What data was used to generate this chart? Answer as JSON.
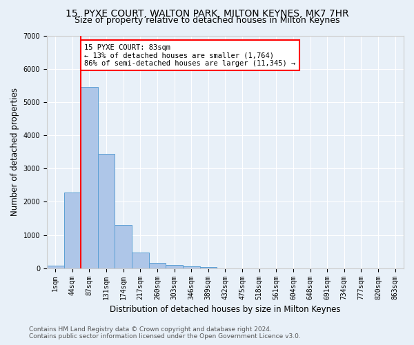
{
  "title1": "15, PYXE COURT, WALTON PARK, MILTON KEYNES, MK7 7HR",
  "title2": "Size of property relative to detached houses in Milton Keynes",
  "xlabel": "Distribution of detached houses by size in Milton Keynes",
  "ylabel": "Number of detached properties",
  "footer1": "Contains HM Land Registry data © Crown copyright and database right 2024.",
  "footer2": "Contains public sector information licensed under the Open Government Licence v3.0.",
  "bar_labels": [
    "1sqm",
    "44sqm",
    "87sqm",
    "131sqm",
    "174sqm",
    "217sqm",
    "260sqm",
    "303sqm",
    "346sqm",
    "389sqm",
    "432sqm",
    "475sqm",
    "518sqm",
    "561sqm",
    "604sqm",
    "648sqm",
    "691sqm",
    "734sqm",
    "777sqm",
    "820sqm",
    "863sqm"
  ],
  "bar_values": [
    80,
    2270,
    5460,
    3440,
    1310,
    470,
    160,
    100,
    65,
    30,
    0,
    0,
    0,
    0,
    0,
    0,
    0,
    0,
    0,
    0,
    0
  ],
  "bar_color": "#aec6e8",
  "bar_edge_color": "#5a9fd4",
  "vline_x": 1.5,
  "annotation_line1": "15 PYXE COURT: 83sqm",
  "annotation_line2": "← 13% of detached houses are smaller (1,764)",
  "annotation_line3": "86% of semi-detached houses are larger (11,345) →",
  "annotation_box_color": "white",
  "annotation_box_edge": "red",
  "vline_color": "red",
  "ylim": [
    0,
    7000
  ],
  "yticks": [
    0,
    1000,
    2000,
    3000,
    4000,
    5000,
    6000,
    7000
  ],
  "bg_color": "#e8f0f8",
  "plot_bg_color": "#e8f0f8",
  "grid_color": "white",
  "title1_fontsize": 10,
  "title2_fontsize": 9,
  "xlabel_fontsize": 8.5,
  "ylabel_fontsize": 8.5,
  "tick_fontsize": 7,
  "annotation_fontsize": 7.5,
  "footer_fontsize": 6.5
}
